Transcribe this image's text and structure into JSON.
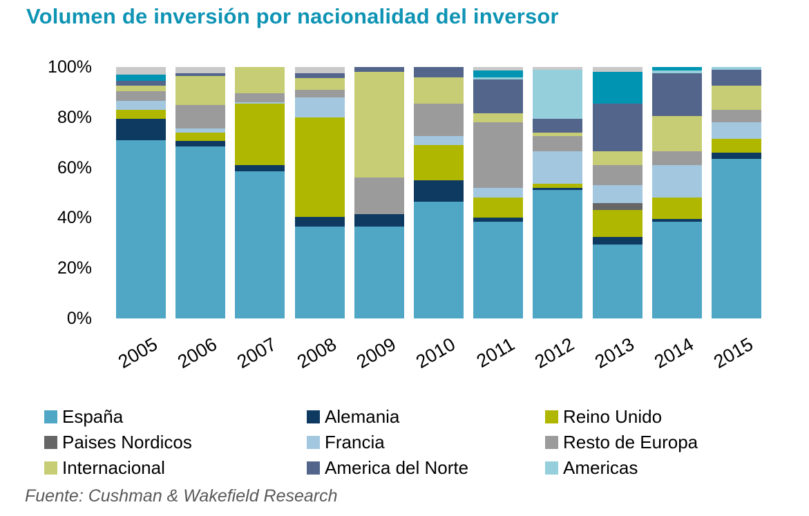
{
  "title": "Volumen de inversión por nacionalidad del inversor",
  "source": "Fuente: Cushman & Wakefield Research",
  "colors": {
    "title": "#0F94B4",
    "source_text": "#595959",
    "axis_text": "#000000"
  },
  "chart_data": {
    "type": "bar",
    "stacked": true,
    "percent_stacked": true,
    "grid": false,
    "legend_position": "bottom",
    "title": "Volumen de inversión por nacionalidad del inversor",
    "xlabel": "",
    "ylabel": "",
    "ylim": [
      0,
      100
    ],
    "y_ticks": [
      "100%",
      "80%",
      "60%",
      "40%",
      "20%",
      "0%"
    ],
    "categories": [
      "2005",
      "2006",
      "2007",
      "2008",
      "2009",
      "2010",
      "2011",
      "2012",
      "2013",
      "2014",
      "2015"
    ],
    "series": [
      {
        "name": "España",
        "color": "#4FA6C5",
        "in_legend": true,
        "values": [
          71,
          68.5,
          58.5,
          36.5,
          36.5,
          46.5,
          38.5,
          51,
          29.5,
          38.5,
          63.5
        ]
      },
      {
        "name": "Alemania",
        "color": "#0E3A62",
        "in_legend": true,
        "values": [
          8.5,
          2,
          2.5,
          4,
          5,
          8.5,
          1.5,
          1,
          3,
          1,
          2.5
        ]
      },
      {
        "name": "Reino Unido",
        "color": "#AFB700",
        "in_legend": true,
        "values": [
          3.5,
          3.5,
          24.5,
          39.5,
          0,
          14,
          8,
          1.5,
          10.5,
          8.5,
          5.5
        ]
      },
      {
        "name": "Paises Nordicos",
        "color": "#666666",
        "in_legend": true,
        "values": [
          0,
          0,
          0,
          0,
          0,
          0,
          0,
          0,
          3,
          0,
          0
        ]
      },
      {
        "name": "Francia",
        "color": "#A2C7DF",
        "in_legend": true,
        "values": [
          3.5,
          1.5,
          0.5,
          8,
          0,
          3.5,
          4,
          13,
          7,
          13,
          6.5
        ]
      },
      {
        "name": "Resto de Europa",
        "color": "#9B9B9B",
        "in_legend": true,
        "values": [
          4,
          9.5,
          3.5,
          3,
          14.5,
          13,
          26,
          6,
          8,
          5.5,
          5
        ]
      },
      {
        "name": "Internacional",
        "color": "#C7CD74",
        "in_legend": true,
        "values": [
          2,
          11.5,
          10.5,
          4.5,
          42,
          10.5,
          3.5,
          1.5,
          5.5,
          14,
          9.5
        ]
      },
      {
        "name": "America del Norte",
        "color": "#54658C",
        "in_legend": true,
        "values": [
          2,
          1,
          0,
          2,
          2,
          4,
          13.5,
          5.5,
          19,
          17,
          6.5
        ]
      },
      {
        "name": "Americas",
        "color": "#96CFDC",
        "in_legend": true,
        "values": [
          0,
          0,
          0,
          0,
          0,
          0,
          1,
          19.5,
          0,
          1,
          1
        ]
      },
      {
        "name": "",
        "color": "#0094B3",
        "in_legend": false,
        "values": [
          2.5,
          0,
          0,
          0,
          0,
          0,
          2.5,
          0,
          12.5,
          1.5,
          0
        ]
      },
      {
        "name": "",
        "color": "#C9C9C9",
        "in_legend": false,
        "values": [
          3,
          2.5,
          0,
          2.5,
          0,
          0,
          1.5,
          1,
          2,
          0,
          0
        ]
      }
    ]
  }
}
